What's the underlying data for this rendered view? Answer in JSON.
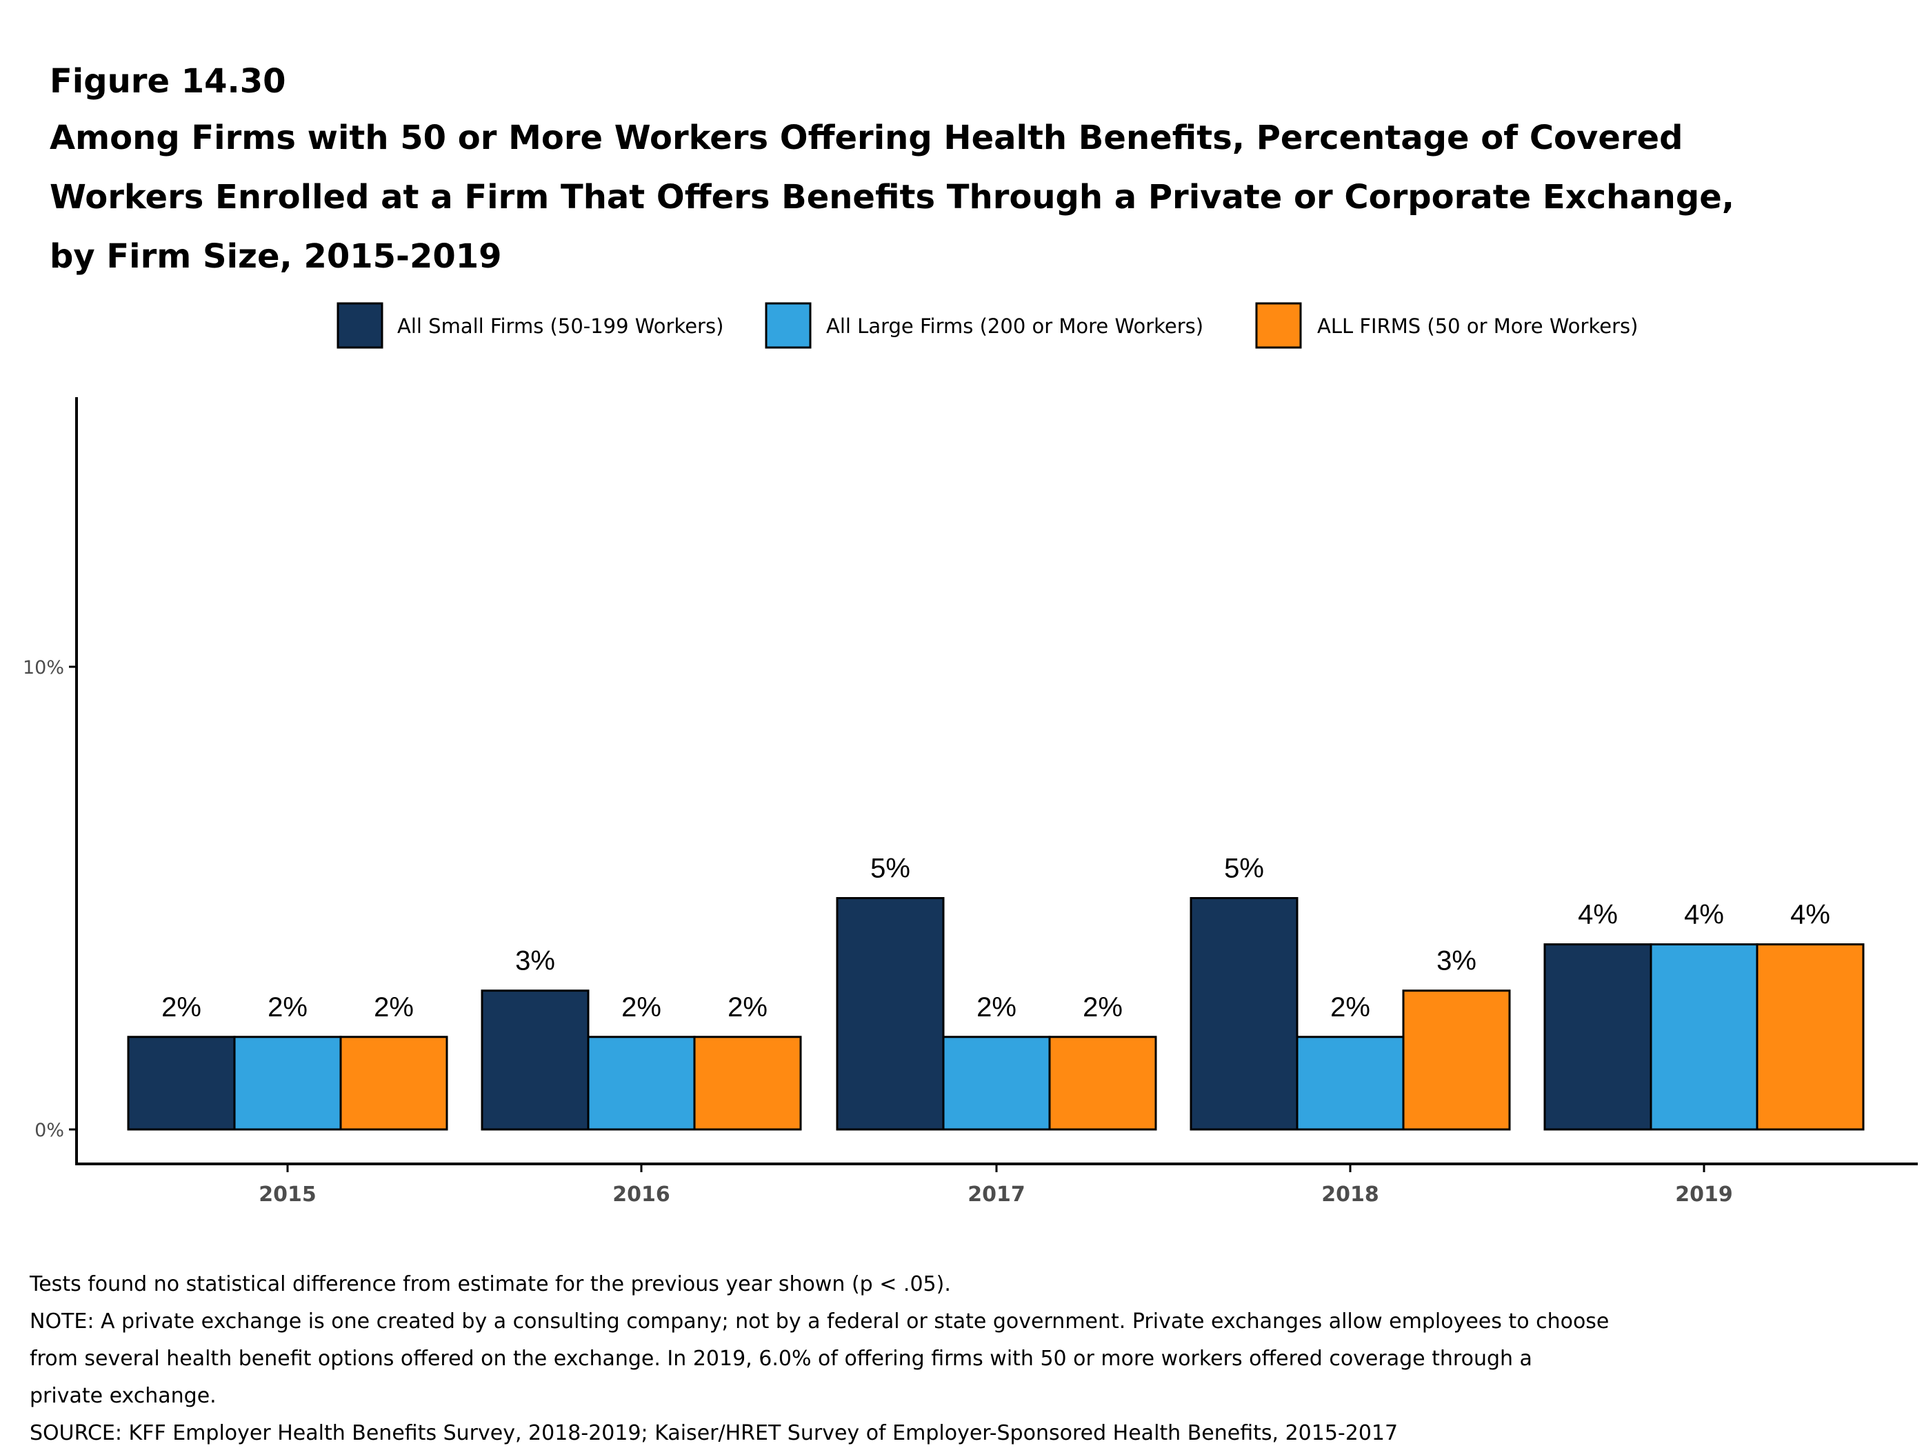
{
  "figure_label": "Figure 14.30",
  "title_lines": [
    "Among Firms with 50 or More Workers Offering Health Benefits, Percentage of Covered",
    "Workers Enrolled at a Firm That Offers Benefits Through a Private or Corporate Exchange,",
    "by Firm Size, 2015-2019"
  ],
  "chart_data": {
    "type": "bar",
    "categories": [
      "2015",
      "2016",
      "2017",
      "2018",
      "2019"
    ],
    "series": [
      {
        "name": "All Small Firms (50-199 Workers)",
        "color": "#15355a",
        "values": [
          2,
          3,
          5,
          5,
          4
        ],
        "labels": [
          "2%",
          "3%",
          "5%",
          "5%",
          "4%"
        ]
      },
      {
        "name": "All Large Firms (200 or More Workers)",
        "color": "#33a4e0",
        "values": [
          2,
          2,
          2,
          2,
          4
        ],
        "labels": [
          "2%",
          "2%",
          "2%",
          "2%",
          "4%"
        ]
      },
      {
        "name": "ALL FIRMS (50 or More Workers)",
        "color": "#ff8a12",
        "values": [
          2,
          2,
          2,
          3,
          4
        ],
        "labels": [
          "2%",
          "2%",
          "2%",
          "3%",
          "4%"
        ]
      }
    ],
    "y_ticks": [
      {
        "value": 0,
        "label": "0%"
      },
      {
        "value": 10,
        "label": "10%"
      }
    ],
    "ylim": [
      -0.4,
      15
    ],
    "grid": false,
    "legend_position": "top"
  },
  "footnotes": [
    "Tests found no statistical difference from estimate for the previous year shown (p < .05).",
    "NOTE: A private exchange is one created by a consulting company; not by a federal or state government. Private exchanges allow employees to choose",
    "from several health benefit options offered on the exchange. In 2019, 6.0% of offering firms with 50 or more workers offered coverage through a",
    "private exchange.",
    "SOURCE: KFF Employer Health Benefits Survey, 2018-2019; Kaiser/HRET Survey of Employer-Sponsored Health Benefits, 2015-2017"
  ]
}
